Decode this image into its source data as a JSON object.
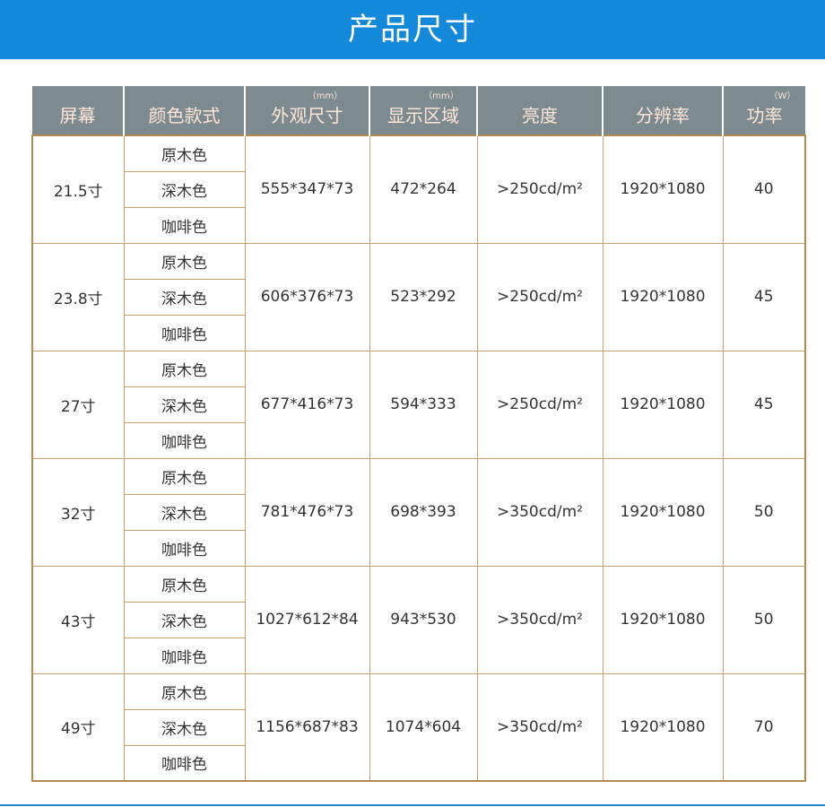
{
  "title": "产品尺寸",
  "headers": [
    {
      "label": "屏幕",
      "unit": ""
    },
    {
      "label": "颜色款式",
      "unit": ""
    },
    {
      "label": "外观尺寸",
      "unit": "（mm）"
    },
    {
      "label": "显示区域",
      "unit": "（mm）"
    },
    {
      "label": "亮度",
      "unit": ""
    },
    {
      "label": "分辨率",
      "unit": ""
    },
    {
      "label": "功率",
      "unit": "（W）"
    }
  ],
  "colors": [
    "原木色",
    "深木色",
    "咖啡色"
  ],
  "rows": [
    {
      "screen": "21.5寸",
      "size": "555*347*73",
      "display": "472*264",
      "brightness": ">250cd/m²",
      "resolution": "1920*1080",
      "power": "40"
    },
    {
      "screen": "23.8寸",
      "size": "606*376*73",
      "display": "523*292",
      "brightness": ">250cd/m²",
      "resolution": "1920*1080",
      "power": "45"
    },
    {
      "screen": "27寸",
      "size": "677*416*73",
      "display": "594*333",
      "brightness": ">250cd/m²",
      "resolution": "1920*1080",
      "power": "45"
    },
    {
      "screen": "32寸",
      "size": "781*476*73",
      "display": "698*393",
      "brightness": ">350cd/m²",
      "resolution": "1920*1080",
      "power": "50"
    },
    {
      "screen": "43寸",
      "size": "1027*612*84",
      "display": "943*530",
      "brightness": ">350cd/m²",
      "resolution": "1920*1080",
      "power": "50"
    },
    {
      "screen": "49寸",
      "size": "1156*687*83",
      "display": "1074*604",
      "brightness": ">350cd/m²",
      "resolution": "1920*1080",
      "power": "70"
    }
  ]
}
